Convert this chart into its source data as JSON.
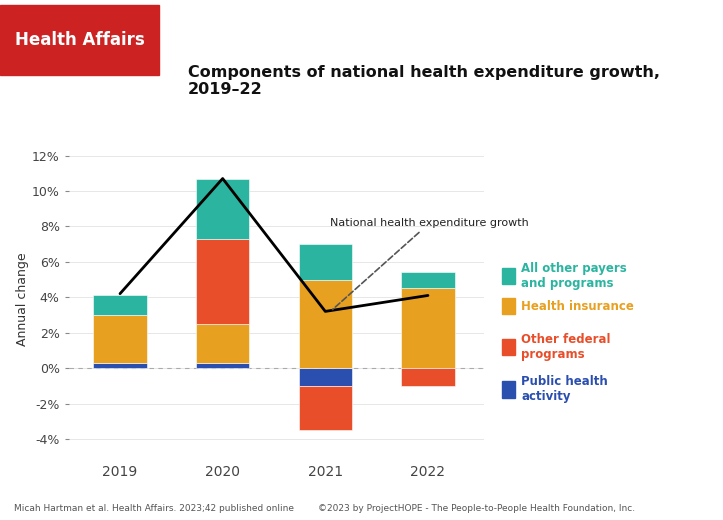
{
  "years": [
    2019,
    2020,
    2021,
    2022
  ],
  "categories": [
    "Public health activity",
    "Health insurance",
    "Other federal programs",
    "All other payers and programs"
  ],
  "colors": [
    "#2b4faf",
    "#e8a020",
    "#e84e2a",
    "#2bb5a0"
  ],
  "bars": {
    "2019": [
      0.3,
      2.7,
      0.0,
      1.1
    ],
    "2020": [
      0.3,
      2.2,
      4.8,
      3.4
    ],
    "2021": [
      -1.0,
      5.0,
      -2.5,
      2.0
    ],
    "2022": [
      0.0,
      4.5,
      -1.0,
      0.9
    ]
  },
  "nhe_line": [
    4.2,
    10.7,
    3.2,
    4.1
  ],
  "title": "Components of national health expenditure growth,\n2019–22",
  "ylabel": "Annual change",
  "ylim": [
    -5.2,
    13.0
  ],
  "yticks": [
    -4,
    -2,
    0,
    2,
    4,
    6,
    8,
    10,
    12
  ],
  "footer_left": "Micah Hartman et al. Health Affairs. 2023;42 published online",
  "footer_right": "©2023 by ProjectHOPE - The People-to-People Health Foundation, Inc.",
  "header_bg": "#cc2222",
  "annotation_text": "National health expenditure growth",
  "bg_color": "#ffffff"
}
